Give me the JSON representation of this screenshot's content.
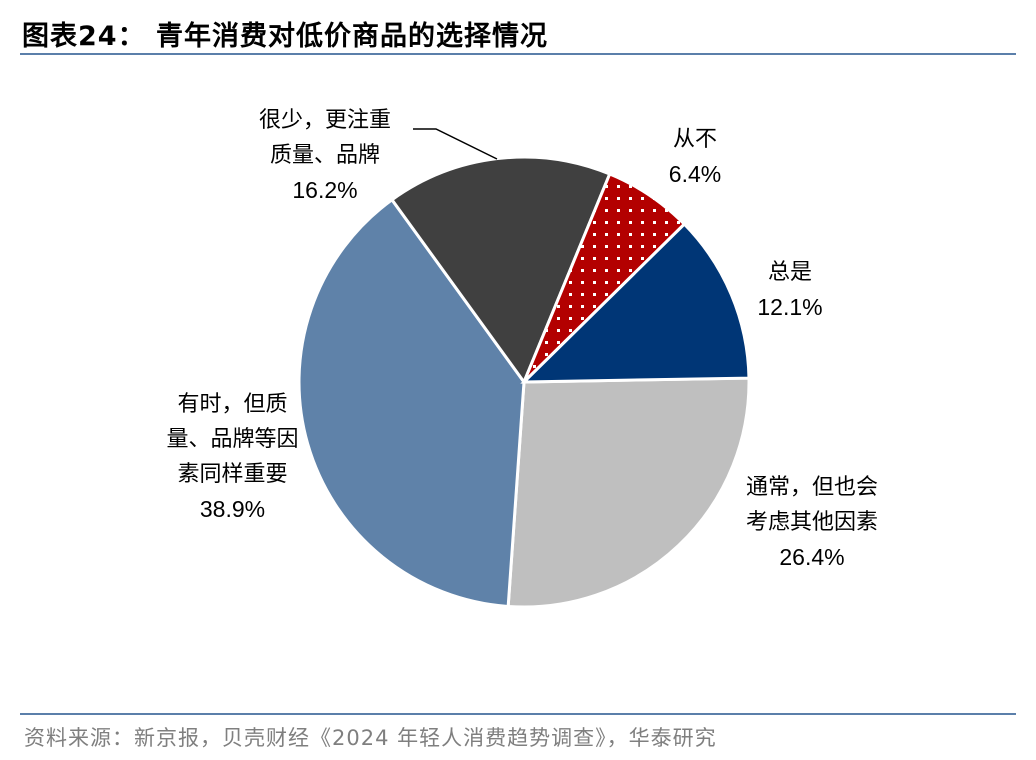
{
  "title": "图表24：  青年消费对低价商品的选择情况",
  "source": "资料来源：新京报，贝壳财经《2024 年轻人消费趋势调查》，华泰研究",
  "chart_data": {
    "type": "pie",
    "title": "青年消费对低价商品的选择情况",
    "start_angle_deg": -1,
    "direction": "clockwise",
    "slices": [
      {
        "label": "通常，但也会考虑其他因素",
        "label_lines": [
          "通常，但也会",
          "考虑其他因素"
        ],
        "value": 26.4,
        "pct_text": "26.4%",
        "color": "#bfbfbf",
        "pattern": "none"
      },
      {
        "label": "有时，但质量、品牌等因素同样重要",
        "label_lines": [
          "有时，但质",
          "量、品牌等因",
          "素同样重要"
        ],
        "value": 38.9,
        "pct_text": "38.9%",
        "color": "#5f82a9",
        "pattern": "none"
      },
      {
        "label": "很少，更注重质量、品牌",
        "label_lines": [
          "很少，更注重",
          "质量、品牌"
        ],
        "value": 16.2,
        "pct_text": "16.2%",
        "color": "#404040",
        "pattern": "none"
      },
      {
        "label": "从不",
        "label_lines": [
          "从不"
        ],
        "value": 6.4,
        "pct_text": "6.4%",
        "color": "#b30000",
        "pattern": "white-dots"
      },
      {
        "label": "总是",
        "label_lines": [
          "总是"
        ],
        "value": 12.1,
        "pct_text": "12.1%",
        "color": "#003676",
        "pattern": "none"
      }
    ]
  }
}
